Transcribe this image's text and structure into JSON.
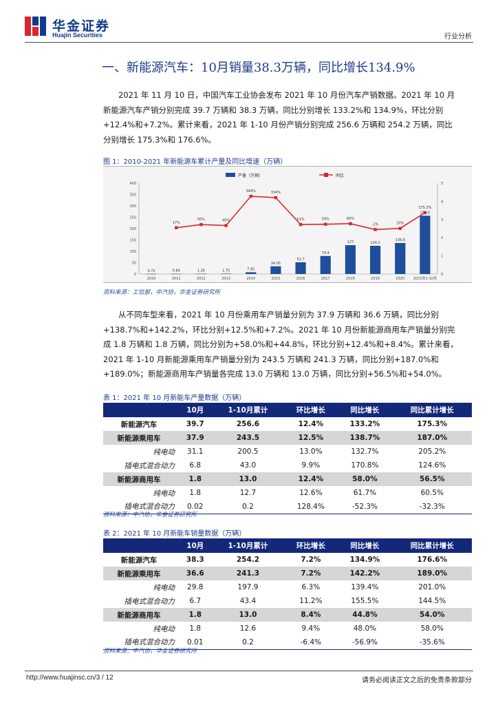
{
  "header": {
    "logo_cn": "华金证券",
    "logo_en": "Huajin Securities",
    "category": "行业分析"
  },
  "section_title": "一、新能源汽车：10月销量38.3万辆，同比增长134.9%",
  "paragraph1": [
    "2021 年 11 月 10 日，中国汽车工业协会发布 2021 年 10 月份汽车产销数据。2021 年 10 月",
    "新能源汽车产销分别完成 39.7 万辆和 38.3 万辆，同比分别增长 133.2%和 134.9%，环比分别",
    "+12.4%和+7.2%。累计来看，2021 年 1-10 月份产销分别完成 256.6 万辆和 254.2 万辆，同比",
    "分别增长 175.3%和 176.6%。"
  ],
  "figure1": {
    "caption": "图 1：2010-2021 年新能源车累计产量及同比增速（万辆）",
    "source": "资料来源：工信部，中汽协，华金证券研究所"
  },
  "chart_data": {
    "type": "bar+line",
    "title": "2010-2021 年新能源车累计产量及同比增速（万辆）",
    "legend": [
      "产量（万辆）",
      "同比"
    ],
    "categories": [
      "2010",
      "2011",
      "2012",
      "2013",
      "2014",
      "2015",
      "2016",
      "2017",
      "2018",
      "2019",
      "2020",
      "2021年1-10月"
    ],
    "bars": {
      "name": "产量（万辆）",
      "values": [
        0.72,
        0.84,
        1.26,
        1.75,
        7.85,
        34.05,
        51.7,
        79.4,
        127,
        124.2,
        136.6,
        256.6
      ],
      "labels": [
        "0.72",
        "0.84",
        "1.26",
        "1.75",
        "7.85",
        "34.05",
        "51.7",
        "79.4",
        "127",
        "124.2",
        "136.6",
        "256.6"
      ],
      "ylim": [
        0,
        400
      ]
    },
    "line": {
      "name": "同比",
      "labels": [
        "",
        "17%",
        "50%",
        "40%",
        "349%",
        "334%",
        "51%",
        "54%",
        "60%",
        "-2%",
        "10%",
        "175.3%"
      ],
      "values": [
        null,
        17,
        50,
        40,
        349,
        334,
        51,
        54,
        60,
        -2,
        10,
        175.3
      ]
    },
    "left_ticks": [
      "400",
      "350",
      "300",
      "250",
      "200",
      "150",
      "100",
      "50",
      "0"
    ],
    "right_ticks": [
      "5",
      "4",
      "3",
      "2",
      "1",
      "0"
    ]
  },
  "paragraph2": [
    "从不同车型来看，2021 年 10 月份乘用车产销量分别为 37.9 万辆和 36.6 万辆，同比分别",
    "+138.7%和+142.2%，环比分别+12.5%和+7.2%。2021 年 10 月份新能源商用车产销量分别完",
    "成 1.8 万辆和 1.8 万辆，同比分别为+58.0%和+44.8%，环比分别+12.4%和+8.4%。累计来看，",
    "2021 年 1-10 月新能源乘用车产销量分别为 243.5 万辆和 241.3 万辆，同比分别+187.0%和",
    "+189.0%；新能源商用车产销量各完成 13.0 万辆和 13.0 万辆，同比分别+56.5%和+54.0%。"
  ],
  "table1": {
    "caption": "表 1：2021 年 10 月新能车产量数据（万辆）",
    "headers": [
      "",
      "10月",
      "1-10月累计",
      "环比增长",
      "同比增长",
      "同比累计增长"
    ],
    "rows": [
      [
        "新能源汽车",
        "39.7",
        "256.6",
        "12.4%",
        "133.2%",
        "175.3%"
      ],
      [
        "新能源乘用车",
        "37.9",
        "243.5",
        "12.5%",
        "138.7%",
        "187.0%"
      ],
      [
        "纯电动",
        "31.1",
        "200.5",
        "13.0%",
        "132.7%",
        "205.2%"
      ],
      [
        "插电式混合动力",
        "6.8",
        "43.0",
        "9.9%",
        "170.8%",
        "124.6%"
      ],
      [
        "新能源商用车",
        "1.8",
        "13.0",
        "12.4%",
        "58.0%",
        "56.5%"
      ],
      [
        "纯电动",
        "1.8",
        "12.7",
        "12.6%",
        "61.7%",
        "60.5%"
      ],
      [
        "插电式混合动力",
        "0.02",
        "0.2",
        "128.4%",
        "-52.3%",
        "-32.3%"
      ]
    ],
    "source": "资料来源：中汽协，华金证券研究所"
  },
  "table2": {
    "caption": "表 2：2021 年 10 月新能车销量数据（万辆）",
    "headers": [
      "",
      "10月",
      "1-10月累计",
      "环比增长",
      "同比增长",
      "同比累计增长"
    ],
    "rows": [
      [
        "新能源汽车",
        "38.3",
        "254.2",
        "7.2%",
        "134.9%",
        "176.6%"
      ],
      [
        "新能源乘用车",
        "36.6",
        "241.3",
        "7.2%",
        "142.2%",
        "189.0%"
      ],
      [
        "纯电动",
        "29.8",
        "197.9",
        "6.3%",
        "139.4%",
        "201.0%"
      ],
      [
        "插电式混合动力",
        "6.7",
        "43.4",
        "11.2%",
        "155.5%",
        "144.5%"
      ],
      [
        "新能源商用车",
        "1.8",
        "13.0",
        "8.4%",
        "44.8%",
        "54.0%"
      ],
      [
        "纯电动",
        "1.8",
        "12.6",
        "9.4%",
        "48.0%",
        "58.0%"
      ],
      [
        "插电式混合动力",
        "0.01",
        "0.2",
        "-6.4%",
        "-56.9%",
        "-35.6%"
      ]
    ],
    "source": "资料来源：中汽协，华金证券研究所"
  },
  "footer": {
    "url": "http://www.huajinsc.cn/3 / 12",
    "disclaimer": "请务必阅读正文之后的免责条款部分"
  },
  "colors": {
    "brand": "#123a8c",
    "bar": "#1f4e9c",
    "line": "#d9262e",
    "logo_red": "#d9262e"
  }
}
